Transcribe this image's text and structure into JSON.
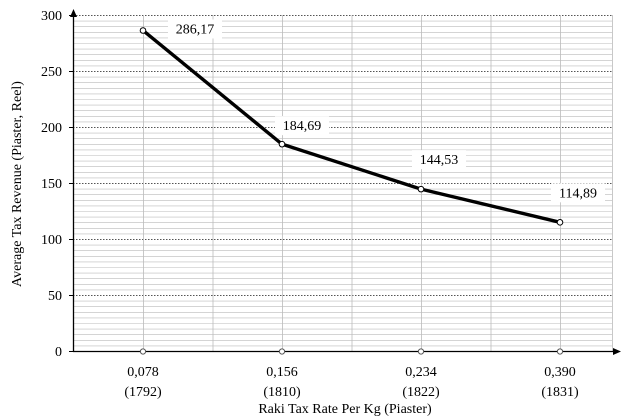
{
  "chart_data": {
    "type": "line",
    "title": "",
    "xlabel": "Raki Tax Rate Per Kg (Piaster)",
    "ylabel": "Average Tax Revenue (Piaster, Reel)",
    "categories": [
      {
        "rate": "0,078",
        "year": "(1792)"
      },
      {
        "rate": "0,156",
        "year": "(1810)"
      },
      {
        "rate": "0,234",
        "year": "(1822)"
      },
      {
        "rate": "0,390",
        "year": "(1831)"
      }
    ],
    "series": [
      {
        "values": [
          286.17,
          184.69,
          144.53,
          114.89
        ],
        "value_labels": [
          "286,17",
          "184,69",
          "144,53",
          "114,89"
        ]
      }
    ],
    "ylim": [
      0,
      300
    ],
    "y_ticks": [
      {
        "value": 0,
        "label": "0"
      },
      {
        "value": 50,
        "label": "50"
      },
      {
        "value": 100,
        "label": "100"
      },
      {
        "value": 150,
        "label": "150"
      },
      {
        "value": 200,
        "label": "200"
      },
      {
        "value": 250,
        "label": "250"
      },
      {
        "value": 300,
        "label": "300"
      }
    ],
    "grid": true,
    "legend": "none",
    "colors": {
      "line": "#000000",
      "marker_fill": "#ffffff",
      "major_grid": "#555555",
      "minor_grid": "#bbbbbb"
    }
  }
}
